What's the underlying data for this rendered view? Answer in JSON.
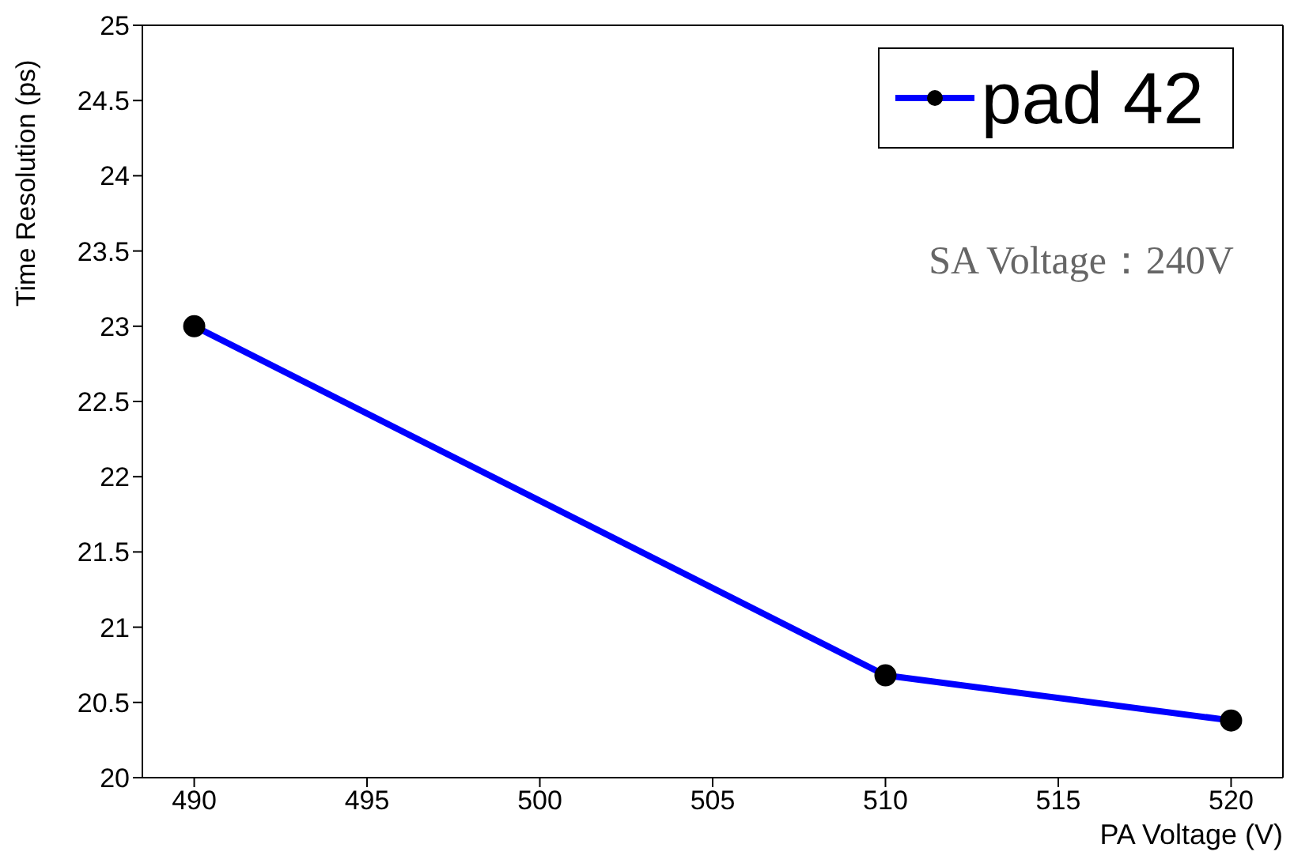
{
  "chart_data": {
    "type": "line",
    "xlabel": "PA Voltage (V)",
    "ylabel": "Time Resolution (ps)",
    "x": [
      490,
      510,
      520
    ],
    "series": [
      {
        "name": "pad 42",
        "color": "#0000ff",
        "values": [
          23.0,
          20.68,
          20.38
        ]
      }
    ],
    "xlim": [
      488.5,
      521.5
    ],
    "xticks": [
      490,
      495,
      500,
      505,
      510,
      515,
      520
    ],
    "ylim": [
      20,
      25
    ],
    "yticks": [
      20,
      20.5,
      21,
      21.5,
      22,
      22.5,
      23,
      23.5,
      24,
      24.5,
      25
    ],
    "annotations": [
      "SA Voltage：240V"
    ],
    "legend": "top right",
    "marker": "circle",
    "line_style": "solid",
    "grid": false
  }
}
